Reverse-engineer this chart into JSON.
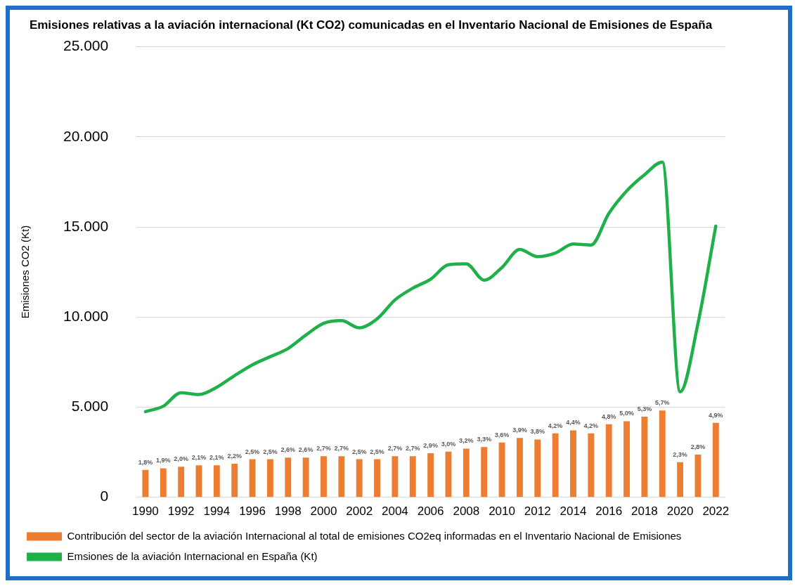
{
  "chart_data": {
    "type": "bar",
    "title": "Emisiones relativas a la aviación internacional (Kt CO2) comunicadas en el Inventario Nacional de Emisiones de España",
    "ylabel": "Emisiones CO2 (Kt)",
    "categories": [
      "1990",
      null,
      "1992",
      null,
      "1994",
      null,
      "1996",
      null,
      "1998",
      null,
      "2000",
      null,
      "2002",
      null,
      "2004",
      null,
      "2006",
      null,
      "2008",
      null,
      "2010",
      null,
      "2012",
      null,
      "2014",
      null,
      "2016",
      null,
      "2018",
      null,
      "2020",
      null,
      "2022"
    ],
    "series": [
      {
        "name": "Contribución del sector de la aviación Internacional al total de emisiones CO2eq informadas en el Inventario Nacional de Emisiones",
        "axis": "y2",
        "color": "#ed7d31",
        "values": [
          1.8,
          1.9,
          2.0,
          2.1,
          2.1,
          2.2,
          2.5,
          2.5,
          2.6,
          2.6,
          2.7,
          2.7,
          2.5,
          2.5,
          2.7,
          2.7,
          2.9,
          3.0,
          3.2,
          3.3,
          3.6,
          3.9,
          3.8,
          4.2,
          4.4,
          4.2,
          4.8,
          5.0,
          5.3,
          5.7,
          2.3,
          2.8,
          4.9
        ],
        "value_labels": [
          "1,8%",
          "1,9%",
          "2,0%",
          "2,1%",
          "2,1%",
          "2,2%",
          "2,5%",
          "2,5%",
          "2,6%",
          "2,6%",
          "2,7%",
          "2,7%",
          "2,5%",
          "2,5%",
          "2,7%",
          "2,7%",
          "2,9%",
          "3,0%",
          "3,2%",
          "3,3%",
          "3,6%",
          "3,9%",
          "3,8%",
          "4,2%",
          "4,4%",
          "4,2%",
          "4,8%",
          "5,0%",
          "5,3%",
          "5,7%",
          "2,3%",
          "2,8%",
          "4,9%"
        ]
      },
      {
        "name": "Emsiones de la aviación Internacional en España (Kt)",
        "type": "line",
        "color": "#1fb04a",
        "values": [
          4750,
          5050,
          5800,
          5700,
          6100,
          6750,
          7350,
          7800,
          8250,
          9000,
          9650,
          9800,
          9400,
          9900,
          10950,
          11600,
          12100,
          12900,
          12950,
          12050,
          12750,
          13750,
          13350,
          13550,
          14050,
          14000,
          15750,
          17000,
          17900,
          18600,
          5850,
          9650,
          15050
        ]
      }
    ],
    "ylim": [
      0,
      25000
    ],
    "yticks": [
      {
        "value": 0,
        "label": "0"
      },
      {
        "value": 5000,
        "label": "5.000"
      },
      {
        "value": 10000,
        "label": "10.000"
      },
      {
        "value": 15000,
        "label": "15.000"
      },
      {
        "value": 20000,
        "label": "20.000"
      },
      {
        "value": 25000,
        "label": "25.000"
      }
    ],
    "grid": "y",
    "legend": "bottom",
    "marker": "none",
    "line_style": "solid"
  }
}
